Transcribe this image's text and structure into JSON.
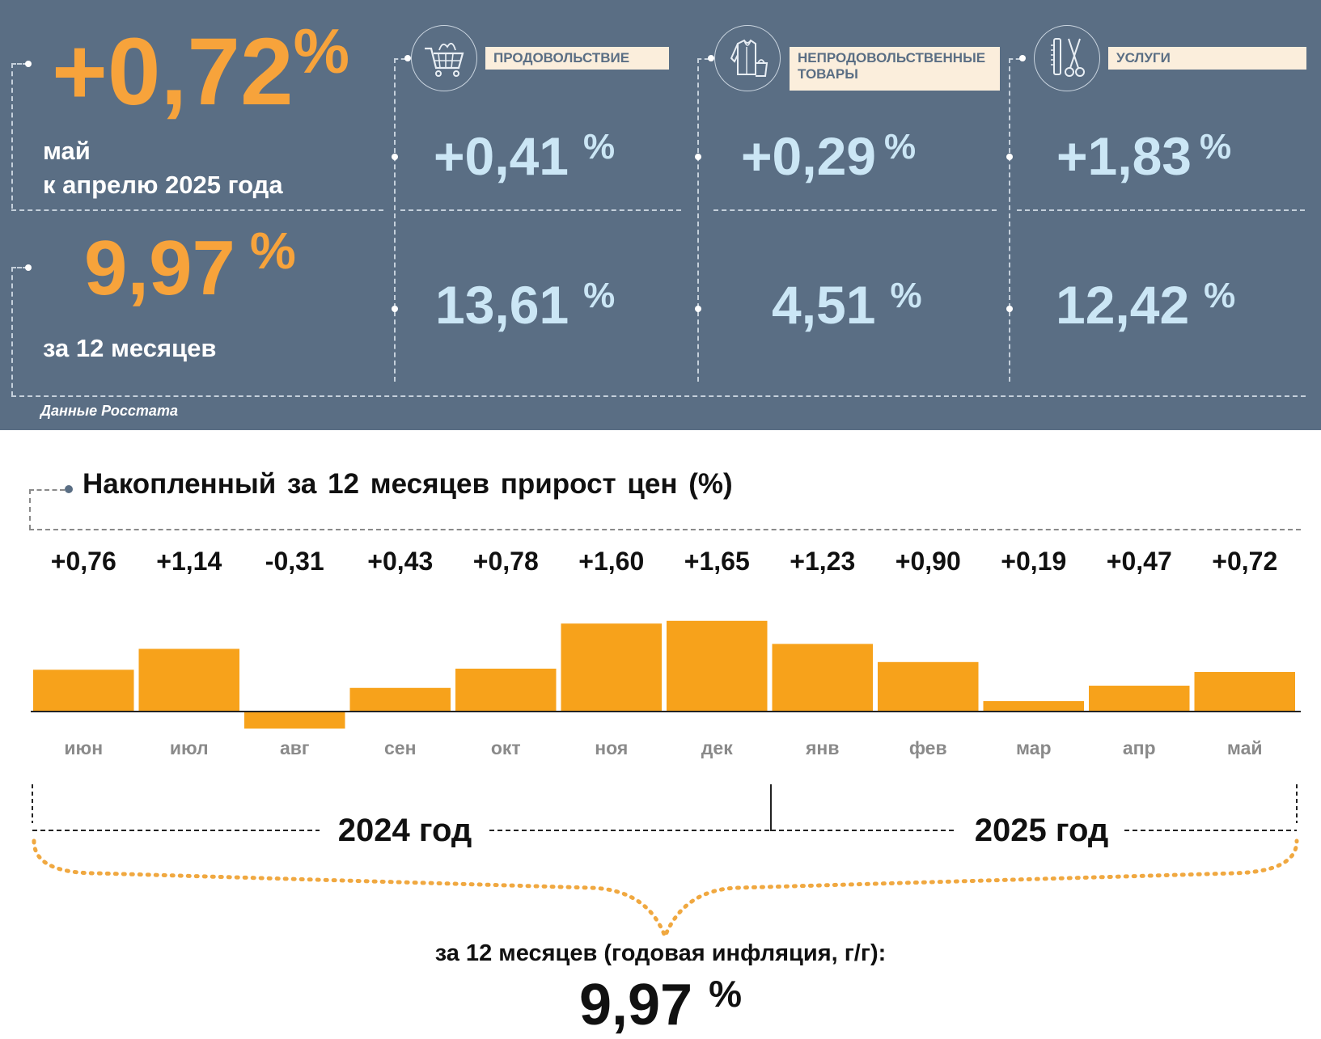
{
  "monthly": {
    "value": "+0,72",
    "unit": "%",
    "caption_line1": "май",
    "caption_line2": "к апрелю 2025 года"
  },
  "annual": {
    "value": "9,97",
    "unit": "%",
    "caption": "за 12 месяцев"
  },
  "categories": [
    {
      "label_line1": "ПРОДОВОЛЬСТВИЕ",
      "label_line2": "",
      "icon": "shopping-cart-icon",
      "monthly": "+0,41",
      "annual": "13,61",
      "unit": "%"
    },
    {
      "label_line1": "НЕПРОДОВОЛЬСТВЕННЫЕ",
      "label_line2": "ТОВАРЫ",
      "icon": "clothes-icon",
      "monthly": "+0,29",
      "annual": "4,51",
      "unit": "%"
    },
    {
      "label_line1": "УСЛУГИ",
      "label_line2": "",
      "icon": "scissors-comb-icon",
      "monthly": "+1,83",
      "annual": "12,42",
      "unit": "%"
    }
  ],
  "source": "Данные Росстата",
  "chart_data": {
    "type": "bar",
    "title": "Накопленный за 12 месяцев прирост цен (%)",
    "categories": [
      "июн",
      "июл",
      "авг",
      "сен",
      "окт",
      "ноя",
      "дек",
      "янв",
      "фев",
      "мар",
      "апр",
      "май"
    ],
    "values": [
      0.76,
      1.14,
      -0.31,
      0.43,
      0.78,
      1.6,
      1.65,
      1.23,
      0.9,
      0.19,
      0.47,
      0.72
    ],
    "value_labels": [
      "+0,76",
      "+1,14",
      "-0,31",
      "+0,43",
      "+0,78",
      "+1,60",
      "+1,65",
      "+1,23",
      "+0,90",
      "+0,19",
      "+0,47",
      "+0,72"
    ],
    "year_labels": [
      "2024 год",
      "2025 год"
    ],
    "summary_caption": "за 12 месяцев (годовая инфляция, г/г):",
    "summary_value": "9,97",
    "summary_unit": "%",
    "bar_color": "#f7a21b"
  },
  "colors": {
    "panel_bg": "#5a6e84",
    "accent_orange": "#f7a33b",
    "light_blue": "#cbe6f5",
    "label_bg": "#fbeedc"
  }
}
